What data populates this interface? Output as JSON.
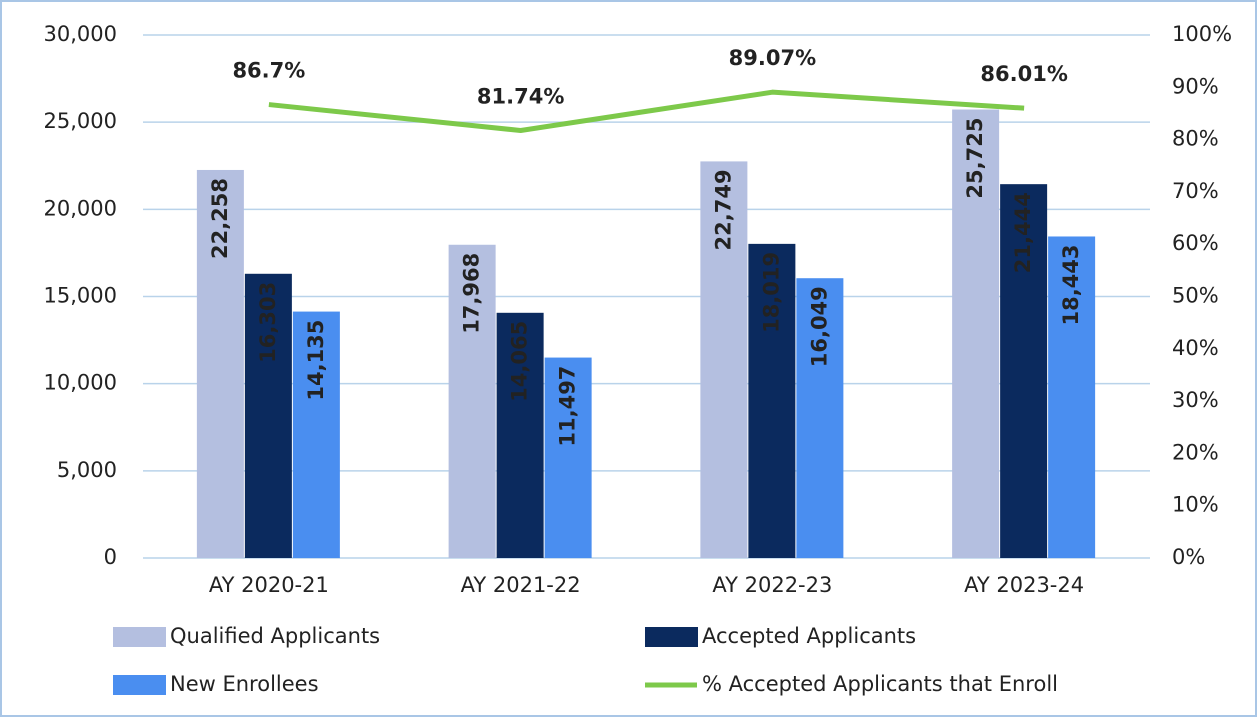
{
  "chart_data": {
    "type": "bar",
    "categories": [
      "AY 2020-21",
      "AY 2021-22",
      "AY 2022-23",
      "AY 2023-24"
    ],
    "series": [
      {
        "name": "Qualified Applicants",
        "color": "#b4bfe0",
        "values": [
          22258,
          17968,
          22749,
          25725
        ],
        "value_labels": [
          "22,258",
          "17,968",
          "22,749",
          "25,725"
        ]
      },
      {
        "name": "Accepted Applicants",
        "color": "#0b2a5e",
        "values": [
          16303,
          14065,
          18019,
          21444
        ],
        "value_labels": [
          "16,303",
          "14,065",
          "18,019",
          "21,444"
        ]
      },
      {
        "name": "New Enrollees",
        "color": "#4a8ef0",
        "values": [
          14135,
          11497,
          16049,
          18443
        ],
        "value_labels": [
          "14,135",
          "11,497",
          "16,049",
          "18,443"
        ]
      },
      {
        "name": "% Accepted Applicants that Enroll",
        "type": "line",
        "axis": "y2",
        "color": "#7dc94a",
        "values": [
          86.7,
          81.74,
          89.07,
          86.01
        ],
        "value_labels": [
          "86.7%",
          "81.74%",
          "89.07%",
          "86.01%"
        ]
      }
    ],
    "ylim": [
      0,
      30000
    ],
    "yticks": [
      0,
      {
        "value": 5000,
        "label": "5,000"
      },
      {
        "value": 10000,
        "label": "10,000"
      },
      {
        "value": 15000,
        "label": "15,000"
      },
      {
        "value": 20000,
        "label": "20,000"
      },
      {
        "value": 25000,
        "label": "25,000"
      },
      {
        "value": 30000,
        "label": "30,000"
      }
    ],
    "y2lim": [
      0,
      100
    ],
    "y2ticks": [
      {
        "value": 0,
        "label": "0%"
      },
      {
        "value": 10,
        "label": "10%"
      },
      {
        "value": 20,
        "label": "20%"
      },
      {
        "value": 30,
        "label": "30%"
      },
      {
        "value": 40,
        "label": "40%"
      },
      {
        "value": 50,
        "label": "50%"
      },
      {
        "value": 60,
        "label": "60%"
      },
      {
        "value": 70,
        "label": "70%"
      },
      {
        "value": 80,
        "label": "80%"
      },
      {
        "value": 90,
        "label": "90%"
      },
      {
        "value": 100,
        "label": "100%"
      }
    ],
    "grid": true
  }
}
